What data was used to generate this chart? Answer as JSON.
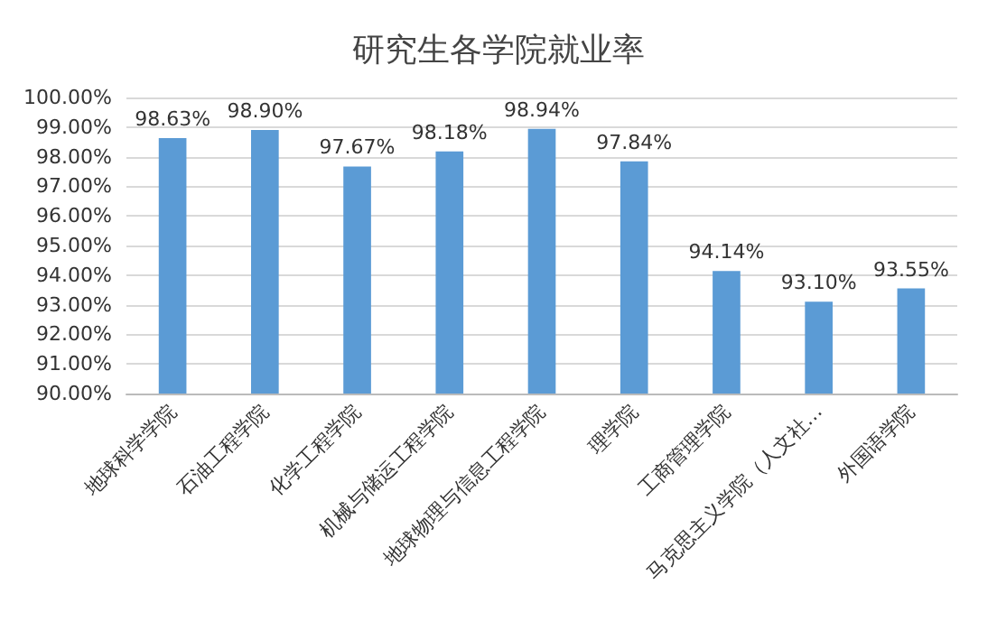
{
  "chart_data": {
    "type": "bar",
    "title": "研究生各学院就业率",
    "categories": [
      "地球科学学院",
      "石油工程学院",
      "化学工程学院",
      "机械与储运工程学院",
      "地球物理与信息工程学院",
      "理学院",
      "工商管理学院",
      "马克思主义学院（人文社…",
      "外国语学院"
    ],
    "values": [
      98.63,
      98.9,
      97.67,
      98.18,
      98.94,
      97.84,
      94.14,
      93.1,
      93.55
    ],
    "value_labels": [
      "98.63%",
      "98.90%",
      "97.67%",
      "98.18%",
      "98.94%",
      "97.84%",
      "94.14%",
      "93.10%",
      "93.55%"
    ],
    "color": "#5b9bd5",
    "ylim": [
      90,
      100
    ],
    "yticks": [
      {
        "value": 90,
        "label": "90.00%"
      },
      {
        "value": 91,
        "label": "91.00%"
      },
      {
        "value": 92,
        "label": "92.00%"
      },
      {
        "value": 93,
        "label": "93.00%"
      },
      {
        "value": 94,
        "label": "94.00%"
      },
      {
        "value": 95,
        "label": "95.00%"
      },
      {
        "value": 96,
        "label": "96.00%"
      },
      {
        "value": 97,
        "label": "97.00%"
      },
      {
        "value": 98,
        "label": "98.00%"
      },
      {
        "value": 99,
        "label": "99.00%"
      },
      {
        "value": 100,
        "label": "100.00%"
      }
    ],
    "grid": true
  }
}
